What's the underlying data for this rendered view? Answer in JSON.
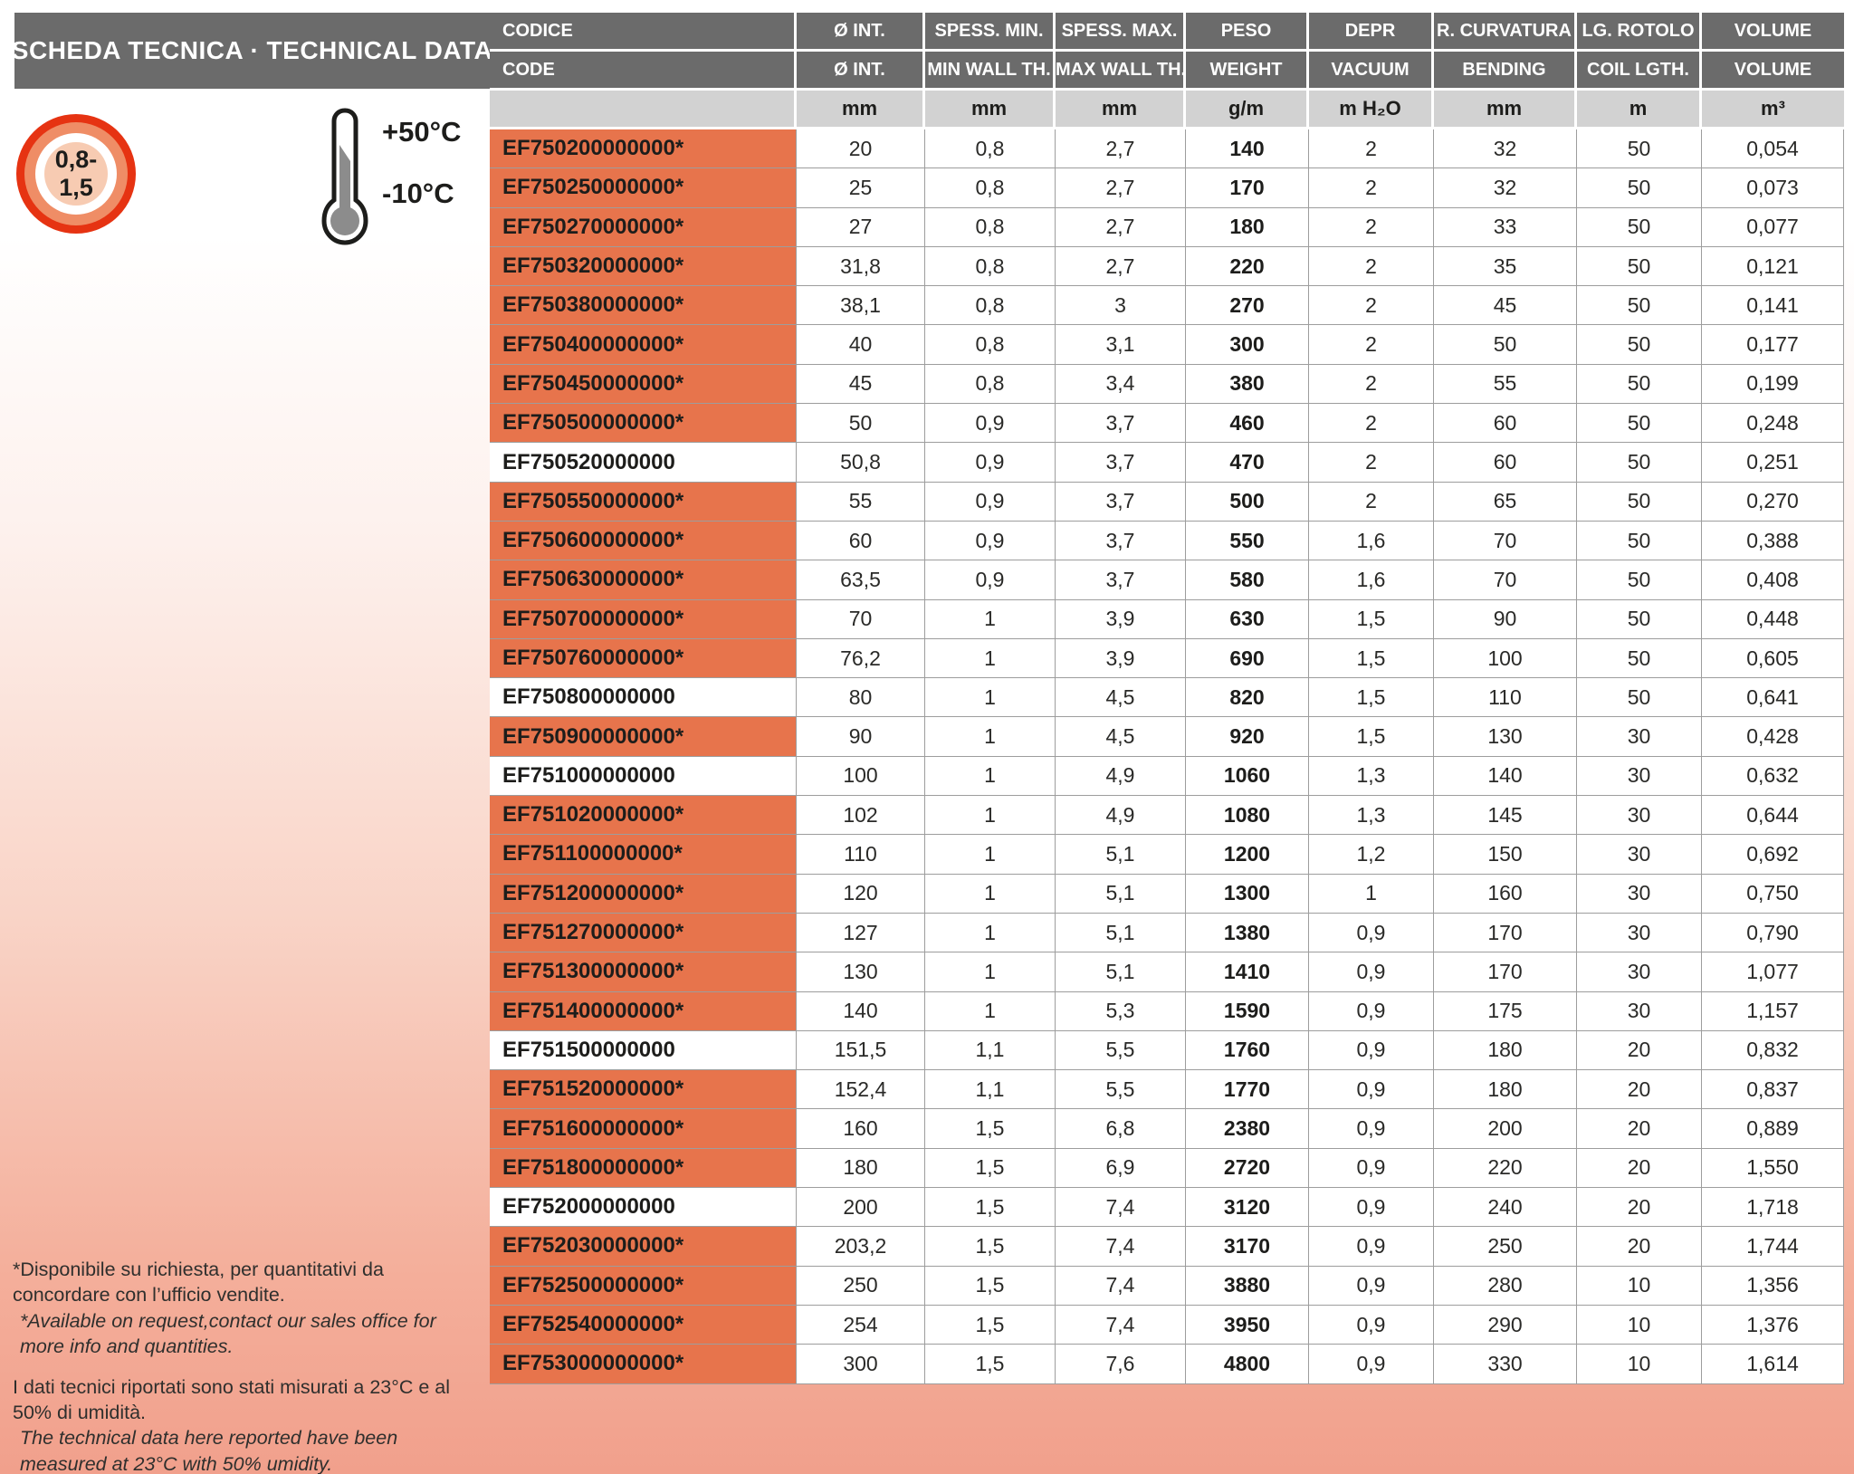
{
  "header": {
    "title": "SCHEDA TECNICA · TECHNICAL DATA"
  },
  "badges": {
    "thickness_range": "0,8-1,5",
    "temp_max": "+50°C",
    "temp_min": "-10°C"
  },
  "table": {
    "columns": [
      {
        "it": "CODICE",
        "en": "CODE",
        "unit": ""
      },
      {
        "it": "Ø INT.",
        "en": "Ø INT.",
        "unit": "mm"
      },
      {
        "it": "SPESS. MIN.",
        "en": "MIN WALL TH.",
        "unit": "mm"
      },
      {
        "it": "SPESS. MAX.",
        "en": "MAX WALL TH.",
        "unit": "mm"
      },
      {
        "it": "PESO",
        "en": "WEIGHT",
        "unit": "g/m"
      },
      {
        "it": "DEPR",
        "en": "VACUUM",
        "unit": "m H₂O"
      },
      {
        "it": "R. CURVATURA",
        "en": "BENDING",
        "unit": "mm"
      },
      {
        "it": "LG. ROTOLO",
        "en": "COIL LGTH.",
        "unit": "m"
      },
      {
        "it": "VOLUME",
        "en": "VOLUME",
        "unit": "m³"
      }
    ],
    "rows": [
      {
        "code": "EF750200000000*",
        "starred": true,
        "values": [
          "20",
          "0,8",
          "2,7",
          "140",
          "2",
          "32",
          "50",
          "0,054"
        ]
      },
      {
        "code": "EF750250000000*",
        "starred": true,
        "values": [
          "25",
          "0,8",
          "2,7",
          "170",
          "2",
          "32",
          "50",
          "0,073"
        ]
      },
      {
        "code": "EF750270000000*",
        "starred": true,
        "values": [
          "27",
          "0,8",
          "2,7",
          "180",
          "2",
          "33",
          "50",
          "0,077"
        ]
      },
      {
        "code": "EF750320000000*",
        "starred": true,
        "values": [
          "31,8",
          "0,8",
          "2,7",
          "220",
          "2",
          "35",
          "50",
          "0,121"
        ]
      },
      {
        "code": "EF750380000000*",
        "starred": true,
        "values": [
          "38,1",
          "0,8",
          "3",
          "270",
          "2",
          "45",
          "50",
          "0,141"
        ]
      },
      {
        "code": "EF750400000000*",
        "starred": true,
        "values": [
          "40",
          "0,8",
          "3,1",
          "300",
          "2",
          "50",
          "50",
          "0,177"
        ]
      },
      {
        "code": "EF750450000000*",
        "starred": true,
        "values": [
          "45",
          "0,8",
          "3,4",
          "380",
          "2",
          "55",
          "50",
          "0,199"
        ]
      },
      {
        "code": "EF750500000000*",
        "starred": true,
        "values": [
          "50",
          "0,9",
          "3,7",
          "460",
          "2",
          "60",
          "50",
          "0,248"
        ]
      },
      {
        "code": "EF750520000000",
        "starred": false,
        "values": [
          "50,8",
          "0,9",
          "3,7",
          "470",
          "2",
          "60",
          "50",
          "0,251"
        ]
      },
      {
        "code": "EF750550000000*",
        "starred": true,
        "values": [
          "55",
          "0,9",
          "3,7",
          "500",
          "2",
          "65",
          "50",
          "0,270"
        ]
      },
      {
        "code": "EF750600000000*",
        "starred": true,
        "values": [
          "60",
          "0,9",
          "3,7",
          "550",
          "1,6",
          "70",
          "50",
          "0,388"
        ]
      },
      {
        "code": "EF750630000000*",
        "starred": true,
        "values": [
          "63,5",
          "0,9",
          "3,7",
          "580",
          "1,6",
          "70",
          "50",
          "0,408"
        ]
      },
      {
        "code": "EF750700000000*",
        "starred": true,
        "values": [
          "70",
          "1",
          "3,9",
          "630",
          "1,5",
          "90",
          "50",
          "0,448"
        ]
      },
      {
        "code": "EF750760000000*",
        "starred": true,
        "values": [
          "76,2",
          "1",
          "3,9",
          "690",
          "1,5",
          "100",
          "50",
          "0,605"
        ]
      },
      {
        "code": "EF750800000000",
        "starred": false,
        "values": [
          "80",
          "1",
          "4,5",
          "820",
          "1,5",
          "110",
          "50",
          "0,641"
        ]
      },
      {
        "code": "EF750900000000*",
        "starred": true,
        "values": [
          "90",
          "1",
          "4,5",
          "920",
          "1,5",
          "130",
          "30",
          "0,428"
        ]
      },
      {
        "code": "EF751000000000",
        "starred": false,
        "values": [
          "100",
          "1",
          "4,9",
          "1060",
          "1,3",
          "140",
          "30",
          "0,632"
        ]
      },
      {
        "code": "EF751020000000*",
        "starred": true,
        "values": [
          "102",
          "1",
          "4,9",
          "1080",
          "1,3",
          "145",
          "30",
          "0,644"
        ]
      },
      {
        "code": "EF751100000000*",
        "starred": true,
        "values": [
          "110",
          "1",
          "5,1",
          "1200",
          "1,2",
          "150",
          "30",
          "0,692"
        ]
      },
      {
        "code": "EF751200000000*",
        "starred": true,
        "values": [
          "120",
          "1",
          "5,1",
          "1300",
          "1",
          "160",
          "30",
          "0,750"
        ]
      },
      {
        "code": "EF751270000000*",
        "starred": true,
        "values": [
          "127",
          "1",
          "5,1",
          "1380",
          "0,9",
          "170",
          "30",
          "0,790"
        ]
      },
      {
        "code": "EF751300000000*",
        "starred": true,
        "values": [
          "130",
          "1",
          "5,1",
          "1410",
          "0,9",
          "170",
          "30",
          "1,077"
        ]
      },
      {
        "code": "EF751400000000*",
        "starred": true,
        "values": [
          "140",
          "1",
          "5,3",
          "1590",
          "0,9",
          "175",
          "30",
          "1,157"
        ]
      },
      {
        "code": "EF751500000000",
        "starred": false,
        "values": [
          "151,5",
          "1,1",
          "5,5",
          "1760",
          "0,9",
          "180",
          "20",
          "0,832"
        ]
      },
      {
        "code": "EF751520000000*",
        "starred": true,
        "values": [
          "152,4",
          "1,1",
          "5,5",
          "1770",
          "0,9",
          "180",
          "20",
          "0,837"
        ]
      },
      {
        "code": "EF751600000000*",
        "starred": true,
        "values": [
          "160",
          "1,5",
          "6,8",
          "2380",
          "0,9",
          "200",
          "20",
          "0,889"
        ]
      },
      {
        "code": "EF751800000000*",
        "starred": true,
        "values": [
          "180",
          "1,5",
          "6,9",
          "2720",
          "0,9",
          "220",
          "20",
          "1,550"
        ]
      },
      {
        "code": "EF752000000000",
        "starred": false,
        "values": [
          "200",
          "1,5",
          "7,4",
          "3120",
          "0,9",
          "240",
          "20",
          "1,718"
        ]
      },
      {
        "code": "EF752030000000*",
        "starred": true,
        "values": [
          "203,2",
          "1,5",
          "7,4",
          "3170",
          "0,9",
          "250",
          "20",
          "1,744"
        ]
      },
      {
        "code": "EF752500000000*",
        "starred": true,
        "values": [
          "250",
          "1,5",
          "7,4",
          "3880",
          "0,9",
          "280",
          "10",
          "1,356"
        ]
      },
      {
        "code": "EF752540000000*",
        "starred": true,
        "values": [
          "254",
          "1,5",
          "7,4",
          "3950",
          "0,9",
          "290",
          "10",
          "1,376"
        ]
      },
      {
        "code": "EF753000000000*",
        "starred": true,
        "values": [
          "300",
          "1,5",
          "7,6",
          "4800",
          "0,9",
          "330",
          "10",
          "1,614"
        ]
      }
    ]
  },
  "footnotes": {
    "it_availability": "*Disponibile su richiesta, per quantitativi da concordare con l’ufficio vendite.",
    "en_availability": "*Available on request,contact our sales office for more info and quantities.",
    "it_measurement": "I dati tecnici riportati sono stati misurati a 23°C e al 50% di umidità.",
    "en_measurement": "The technical data here reported have been measured at 23°C with 50% umidity."
  },
  "colors": {
    "accent_orange": "#E7744C",
    "header_gray": "#6B6B6B",
    "units_gray": "#D2D2D2",
    "ring_red": "#E63312",
    "page_salmon": "#F1A08C"
  }
}
